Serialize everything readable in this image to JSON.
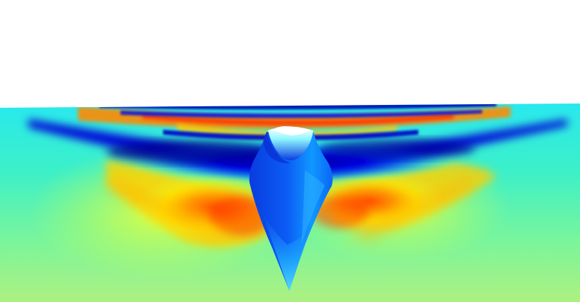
{
  "scene": {
    "background_color": "#ffffff",
    "colormap": "jet",
    "colormap_stops": [
      "#00007f",
      "#0000ff",
      "#0080ff",
      "#00ffff",
      "#80ff80",
      "#ffff00",
      "#ff8000",
      "#ff0000",
      "#7f0000"
    ],
    "surface_base_color": "#33f0c8",
    "hull_color": "#0a55f0",
    "hull_highlight_color": "#2bc8ff",
    "hull_top_color": "#ffffff"
  }
}
